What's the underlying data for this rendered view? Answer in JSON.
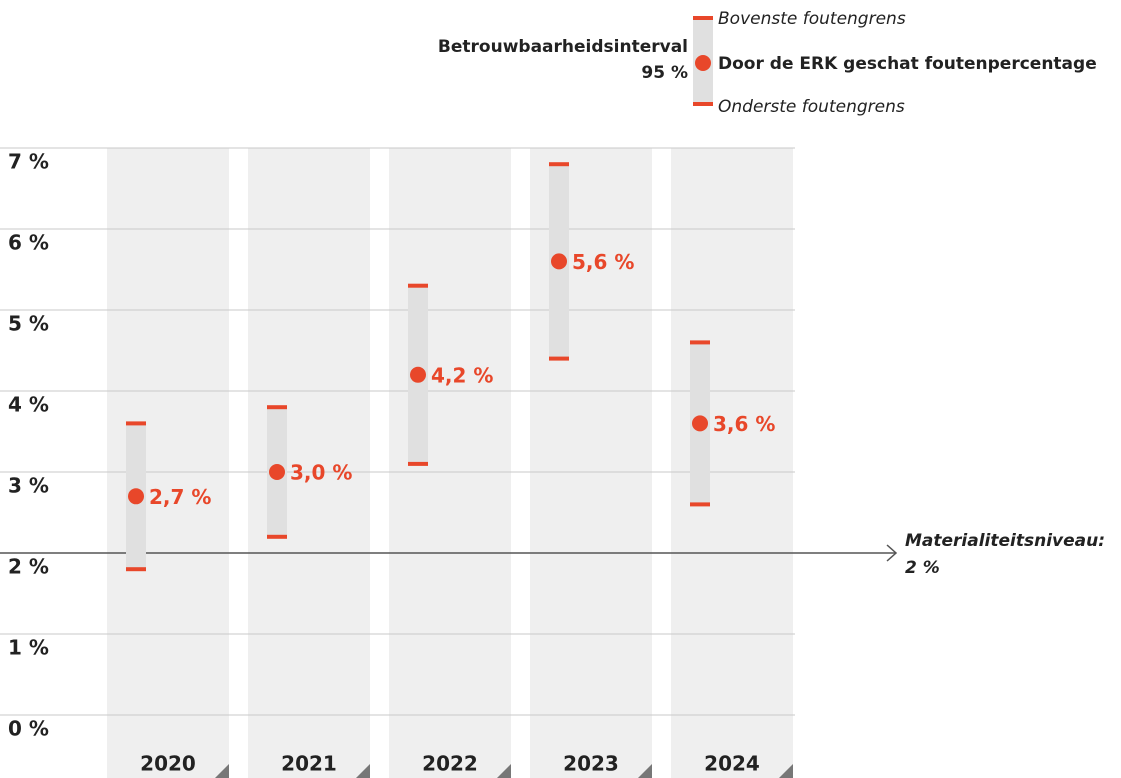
{
  "chart_data": {
    "type": "errorbar",
    "legend_title": [
      "Betrouwbaarheidsinterval",
      "95 %"
    ],
    "categories": [
      "2020",
      "2021",
      "2022",
      "2023",
      "2024"
    ],
    "series": [
      {
        "name": "Door de ERK geschat foutenpercentage",
        "color": "#e8472a",
        "values": [
          2.7,
          3.0,
          4.2,
          5.6,
          3.6
        ],
        "value_labels": [
          "2,7 %",
          "3,0 %",
          "4,2 %",
          "5,6 %",
          "3,6 %"
        ]
      },
      {
        "name": "Bovenste foutengrens",
        "color": "#e8472a",
        "values": [
          3.6,
          3.8,
          5.3,
          6.8,
          4.6
        ]
      },
      {
        "name": "Onderste foutengrens",
        "color": "#e8472a",
        "values": [
          1.8,
          2.2,
          3.1,
          4.4,
          2.6
        ]
      }
    ],
    "interval_color": "#e0e0e0",
    "ylim": [
      0,
      7
    ],
    "yticks": [
      {
        "value": 0,
        "label": "0 %"
      },
      {
        "value": 1,
        "label": "1 %"
      },
      {
        "value": 2,
        "label": "2 %"
      },
      {
        "value": 3,
        "label": "3 %"
      },
      {
        "value": 4,
        "label": "4 %"
      },
      {
        "value": 5,
        "label": "5 %"
      },
      {
        "value": 6,
        "label": "6 %"
      },
      {
        "value": 7,
        "label": "7 %"
      }
    ],
    "grid": true,
    "threshold": {
      "value": 2,
      "label": [
        "Materialiteitsniveau:",
        "2 %"
      ]
    }
  }
}
